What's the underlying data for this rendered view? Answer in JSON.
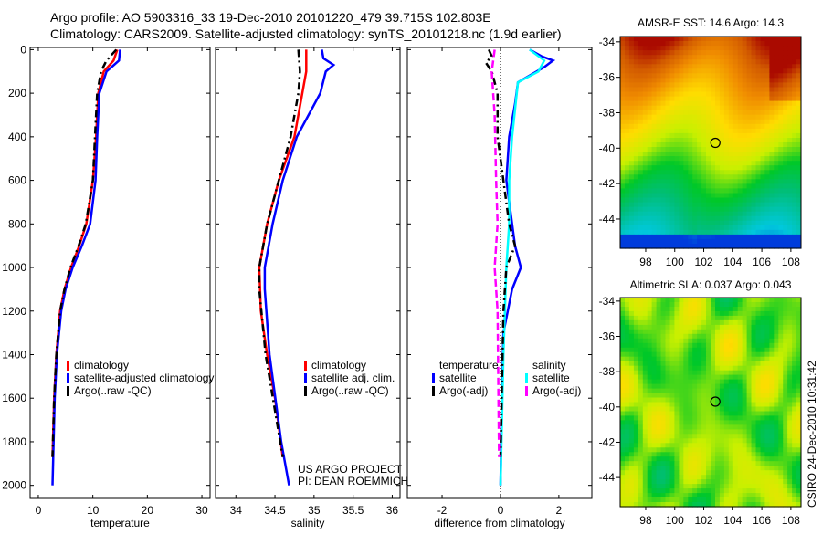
{
  "title_lines": [
    "Argo profile: AO 5903316_33 19-Dec-2010 20101220_479 39.715S 102.803E",
    "Climatology: CARS2009. Satellite-adjusted climatology: synTS_20101218.nc (1.9d earlier)"
  ],
  "credits": [
    "US ARGO PROJECT",
    "PI: DEAN ROEMMICH"
  ],
  "timestamp": "CSIRO 24-Dec-2010 10:31:42",
  "colors": {
    "red": "#ff0000",
    "blue": "#0000ff",
    "black": "#000000",
    "cyan": "#00ffff",
    "magenta": "#ff00ff"
  },
  "chart_data": [
    {
      "type": "line",
      "xlabel": "temperature",
      "ylabel": "",
      "xlim": [
        -1.5,
        31.5
      ],
      "ylim": [
        2060,
        -10
      ],
      "xticks": [
        0,
        10,
        20,
        30
      ],
      "yticks": [
        0,
        200,
        400,
        600,
        800,
        1000,
        1200,
        1400,
        1600,
        1800,
        2000
      ],
      "legend": {
        "placement": "lower-middle",
        "entries": [
          "climatology",
          "satellite-adjusted climatology",
          "Argo(..raw -QC)"
        ]
      },
      "series": [
        {
          "name": "climatology",
          "color": "red",
          "dash": "",
          "depth": [
            0,
            50,
            100,
            200,
            400,
            600,
            800,
            900,
            1000,
            1100,
            1200,
            1400,
            1600,
            1870
          ],
          "values": [
            14.5,
            13.8,
            12.0,
            11.0,
            10.6,
            10.0,
            8.8,
            7.5,
            6.0,
            4.8,
            4.0,
            3.3,
            2.9,
            2.6
          ]
        },
        {
          "name": "satellite-adjusted climatology",
          "color": "blue",
          "dash": "",
          "depth": [
            0,
            50,
            100,
            200,
            400,
            600,
            800,
            900,
            1000,
            1100,
            1200,
            1400,
            1600,
            2000
          ],
          "values": [
            15.0,
            14.8,
            12.5,
            11.2,
            10.8,
            10.5,
            9.5,
            8.0,
            6.3,
            5.0,
            4.2,
            3.4,
            3.0,
            2.6
          ]
        },
        {
          "name": "Argo(..raw -QC)",
          "color": "black",
          "dash": "8 4 2 4",
          "depth": [
            0,
            50,
            100,
            200,
            400,
            600,
            800,
            900,
            1000,
            1100,
            1200,
            1400,
            1600,
            1870
          ],
          "values": [
            14.3,
            12.5,
            11.5,
            10.8,
            10.4,
            10.0,
            8.7,
            7.4,
            5.9,
            4.8,
            4.0,
            3.3,
            2.9,
            2.6
          ]
        }
      ]
    },
    {
      "type": "line",
      "xlabel": "salinity",
      "xlim": [
        33.74,
        36.1
      ],
      "ylim": [
        2060,
        -10
      ],
      "xticks": [
        34,
        34.5,
        35,
        35.5,
        36
      ],
      "legend": {
        "placement": "lower-right",
        "entries": [
          "climatology",
          "satellite adj. clim.",
          "Argo(..raw -QC)"
        ]
      },
      "series": [
        {
          "name": "climatology",
          "color": "red",
          "dash": "",
          "depth": [
            0,
            100,
            200,
            400,
            600,
            800,
            1000,
            1200,
            1400,
            1600,
            1870
          ],
          "values": [
            34.9,
            34.9,
            34.85,
            34.75,
            34.55,
            34.4,
            34.3,
            34.32,
            34.4,
            34.5,
            34.6
          ]
        },
        {
          "name": "satellite adj. clim.",
          "color": "blue",
          "dash": "",
          "depth": [
            0,
            40,
            70,
            100,
            200,
            400,
            600,
            800,
            1000,
            1100,
            1400,
            1800,
            2000
          ],
          "values": [
            35.1,
            35.12,
            35.25,
            35.15,
            35.08,
            34.78,
            34.6,
            34.47,
            34.37,
            34.37,
            34.43,
            34.58,
            34.68
          ]
        },
        {
          "name": "Argo(..raw -QC)",
          "color": "black",
          "dash": "8 4 2 4",
          "depth": [
            0,
            100,
            200,
            400,
            600,
            800,
            1000,
            1100,
            1400,
            1870
          ],
          "values": [
            34.8,
            34.82,
            34.8,
            34.7,
            34.55,
            34.4,
            34.3,
            34.3,
            34.38,
            34.6
          ]
        }
      ]
    },
    {
      "type": "line",
      "xlabel": "difference from climatology",
      "xlim": [
        -3.19,
        3.13
      ],
      "ylim": [
        2060,
        -10
      ],
      "xticks": [
        -2,
        0,
        2
      ],
      "legend": {
        "placement": "lower-middle",
        "headers": [
          "temperature",
          "salinity"
        ],
        "entries": [
          "satellite",
          "Argo(-adj)",
          "satellite",
          "Argo(-adj)"
        ]
      },
      "series": [
        {
          "name": "temperature satellite",
          "color": "blue",
          "dash": "",
          "depth": [
            0,
            30,
            50,
            80,
            150,
            250,
            400,
            600,
            800,
            900,
            1000,
            1100,
            1300,
            1600,
            2000
          ],
          "values": [
            1.0,
            1.4,
            1.8,
            1.5,
            0.6,
            0.5,
            0.3,
            0.2,
            0.4,
            0.5,
            0.7,
            0.4,
            0.1,
            0.05,
            0
          ]
        },
        {
          "name": "salinity satellite",
          "color": "cyan",
          "dash": "",
          "depth": [
            0,
            50,
            100,
            150,
            400,
            600,
            800,
            1000,
            1400,
            2000
          ],
          "values": [
            1.0,
            1.5,
            1.3,
            0.6,
            0.4,
            0.3,
            0.3,
            0.2,
            0.1,
            0
          ]
        },
        {
          "name": "temperature Argo(-adj)",
          "color": "black",
          "dash": "8 4 2 4",
          "depth": [
            0,
            30,
            60,
            100,
            200,
            400,
            800,
            900,
            1000,
            1200,
            1870
          ],
          "values": [
            -0.4,
            -0.3,
            -0.5,
            -0.3,
            -0.1,
            -0.1,
            0.3,
            0.5,
            0.2,
            0.1,
            0
          ]
        },
        {
          "name": "salinity Argo(-adj)",
          "color": "magenta",
          "dash": "8 4",
          "depth": [
            0,
            100,
            300,
            600,
            800,
            1000,
            1200,
            1870
          ],
          "values": [
            -0.2,
            -0.3,
            -0.2,
            -0.15,
            -0.1,
            -0.2,
            -0.1,
            -0.05
          ]
        }
      ]
    },
    {
      "type": "heatmap",
      "title": "AMSR-E SST: 14.6 Argo: 14.3",
      "xlim": [
        96.24,
        108.7
      ],
      "ylim": [
        -45.65,
        -33.7
      ],
      "xticks": [
        98,
        100,
        102,
        104,
        106,
        108
      ],
      "yticks": [
        -34,
        -36,
        -38,
        -40,
        -42,
        -44
      ],
      "marker": {
        "lon": 102.8,
        "lat": -39.7
      }
    },
    {
      "type": "heatmap",
      "title": "Altimetric SLA: 0.037 Argo: 0.043",
      "xlim": [
        96.24,
        108.7
      ],
      "ylim": [
        -45.65,
        -33.8
      ],
      "xticks": [
        98,
        100,
        102,
        104,
        106,
        108
      ],
      "yticks": [
        -34,
        -36,
        -38,
        -40,
        -42,
        -44
      ],
      "marker": {
        "lon": 102.8,
        "lat": -39.7
      }
    }
  ]
}
